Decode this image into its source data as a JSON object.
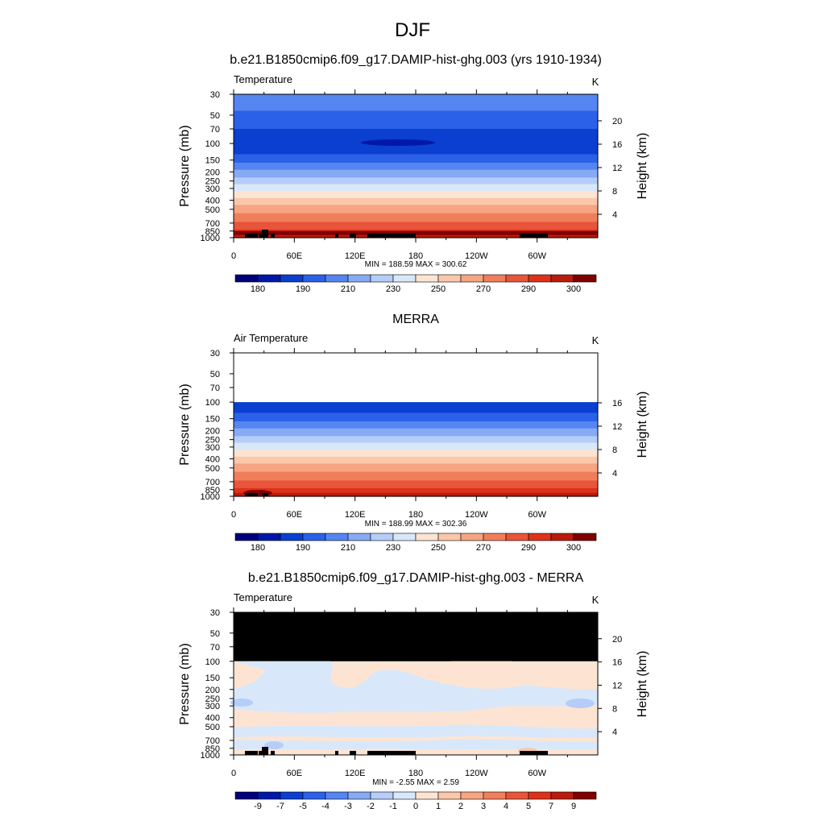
{
  "figure_title": "DJF",
  "colormap": [
    "#00007a",
    "#0018a8",
    "#0a3fcf",
    "#2b60e8",
    "#5585f0",
    "#86aaf4",
    "#b5cdf8",
    "#d8e8fa",
    "#fde4d2",
    "#fac7ab",
    "#f6a482",
    "#f17e5b",
    "#e8553a",
    "#dd3219",
    "#b91c0c",
    "#800000"
  ],
  "colorbar_scales": [
    {
      "labels": [
        "180",
        "190",
        "210",
        "230",
        "250",
        "270",
        "290",
        "300"
      ]
    },
    {
      "labels": [
        "-9",
        "-7",
        "-5",
        "-4",
        "-3",
        "-2",
        "-1",
        "0",
        "1",
        "2",
        "3",
        "4",
        "5",
        "7",
        "9"
      ]
    }
  ],
  "chart_data": [
    {
      "type": "heatmap",
      "title": "b.e21.B1850cmip6.f09_g17.DAMIP-hist-ghg.003 (yrs 1910-1934)",
      "left_label": "Temperature",
      "units": "K",
      "ylabel": "Pressure (mb)",
      "y2label": "Height (km)",
      "x_ticks": [
        "0",
        "60E",
        "120E",
        "180",
        "120W",
        "60W"
      ],
      "y_ticks": [
        "30",
        "50",
        "70",
        "100",
        "150",
        "200",
        "250",
        "300",
        "400",
        "500",
        "700",
        "850",
        "1000"
      ],
      "y2_ticks": [
        "4",
        "8",
        "12",
        "16",
        "20"
      ],
      "stats": "MIN = 188.59  MAX = 300.62",
      "min": 188.59,
      "max": 300.62,
      "colorbar": [
        "180",
        "190",
        "210",
        "230",
        "250",
        "270",
        "290",
        "300"
      ],
      "profile_levels": [
        {
          "p": 30,
          "c": 4
        },
        {
          "p": 45,
          "c": 3
        },
        {
          "p": 70,
          "c": 2
        },
        {
          "p": 100,
          "c": 2
        },
        {
          "p": 130,
          "c": 3
        },
        {
          "p": 160,
          "c": 4
        },
        {
          "p": 190,
          "c": 5
        },
        {
          "p": 230,
          "c": 6
        },
        {
          "p": 270,
          "c": 7
        },
        {
          "p": 320,
          "c": 8
        },
        {
          "p": 380,
          "c": 9
        },
        {
          "p": 450,
          "c": 10
        },
        {
          "p": 550,
          "c": 11
        },
        {
          "p": 680,
          "c": 12
        },
        {
          "p": 820,
          "c": 13
        },
        {
          "p": 920,
          "c": 14
        },
        {
          "p": 1000,
          "c": 14
        }
      ]
    },
    {
      "type": "heatmap",
      "title": "MERRA",
      "left_label": "Air Temperature",
      "units": "K",
      "ylabel": "Pressure (mb)",
      "y2label": "Height (km)",
      "x_ticks": [
        "0",
        "60E",
        "120E",
        "180",
        "120W",
        "60W"
      ],
      "y_ticks": [
        "30",
        "50",
        "70",
        "100",
        "150",
        "200",
        "250",
        "300",
        "400",
        "500",
        "700",
        "850",
        "1000"
      ],
      "y2_ticks": [
        "4",
        "8",
        "12",
        "16"
      ],
      "stats": "MIN = 188.99  MAX = 302.36",
      "min": 188.99,
      "max": 302.36,
      "colorbar": [
        "180",
        "190",
        "210",
        "230",
        "250",
        "270",
        "290",
        "300"
      ],
      "profile_levels": [
        {
          "p": 100,
          "c": 2
        },
        {
          "p": 130,
          "c": 3
        },
        {
          "p": 160,
          "c": 4
        },
        {
          "p": 190,
          "c": 5
        },
        {
          "p": 230,
          "c": 6
        },
        {
          "p": 270,
          "c": 7
        },
        {
          "p": 320,
          "c": 8
        },
        {
          "p": 380,
          "c": 9
        },
        {
          "p": 450,
          "c": 10
        },
        {
          "p": 550,
          "c": 11
        },
        {
          "p": 680,
          "c": 12
        },
        {
          "p": 820,
          "c": 13
        },
        {
          "p": 920,
          "c": 14
        },
        {
          "p": 1000,
          "c": 14
        }
      ]
    },
    {
      "type": "heatmap",
      "title": "b.e21.B1850cmip6.f09_g17.DAMIP-hist-ghg.003 - MERRA",
      "left_label": "Temperature",
      "units": "K",
      "ylabel": "Pressure (mb)",
      "y2label": "Height (km)",
      "x_ticks": [
        "0",
        "60E",
        "120E",
        "180",
        "120W",
        "60W"
      ],
      "y_ticks": [
        "30",
        "50",
        "70",
        "100",
        "150",
        "200",
        "250",
        "300",
        "400",
        "500",
        "700",
        "850",
        "1000"
      ],
      "y2_ticks": [
        "4",
        "8",
        "12",
        "16",
        "20"
      ],
      "stats": "MIN =  -2.55  MAX =   2.59",
      "min": -2.55,
      "max": 2.59,
      "colorbar": [
        "-9",
        "-7",
        "-5",
        "-4",
        "-3",
        "-2",
        "-1",
        "0",
        "1",
        "2",
        "3",
        "4",
        "5",
        "7",
        "9"
      ]
    }
  ]
}
